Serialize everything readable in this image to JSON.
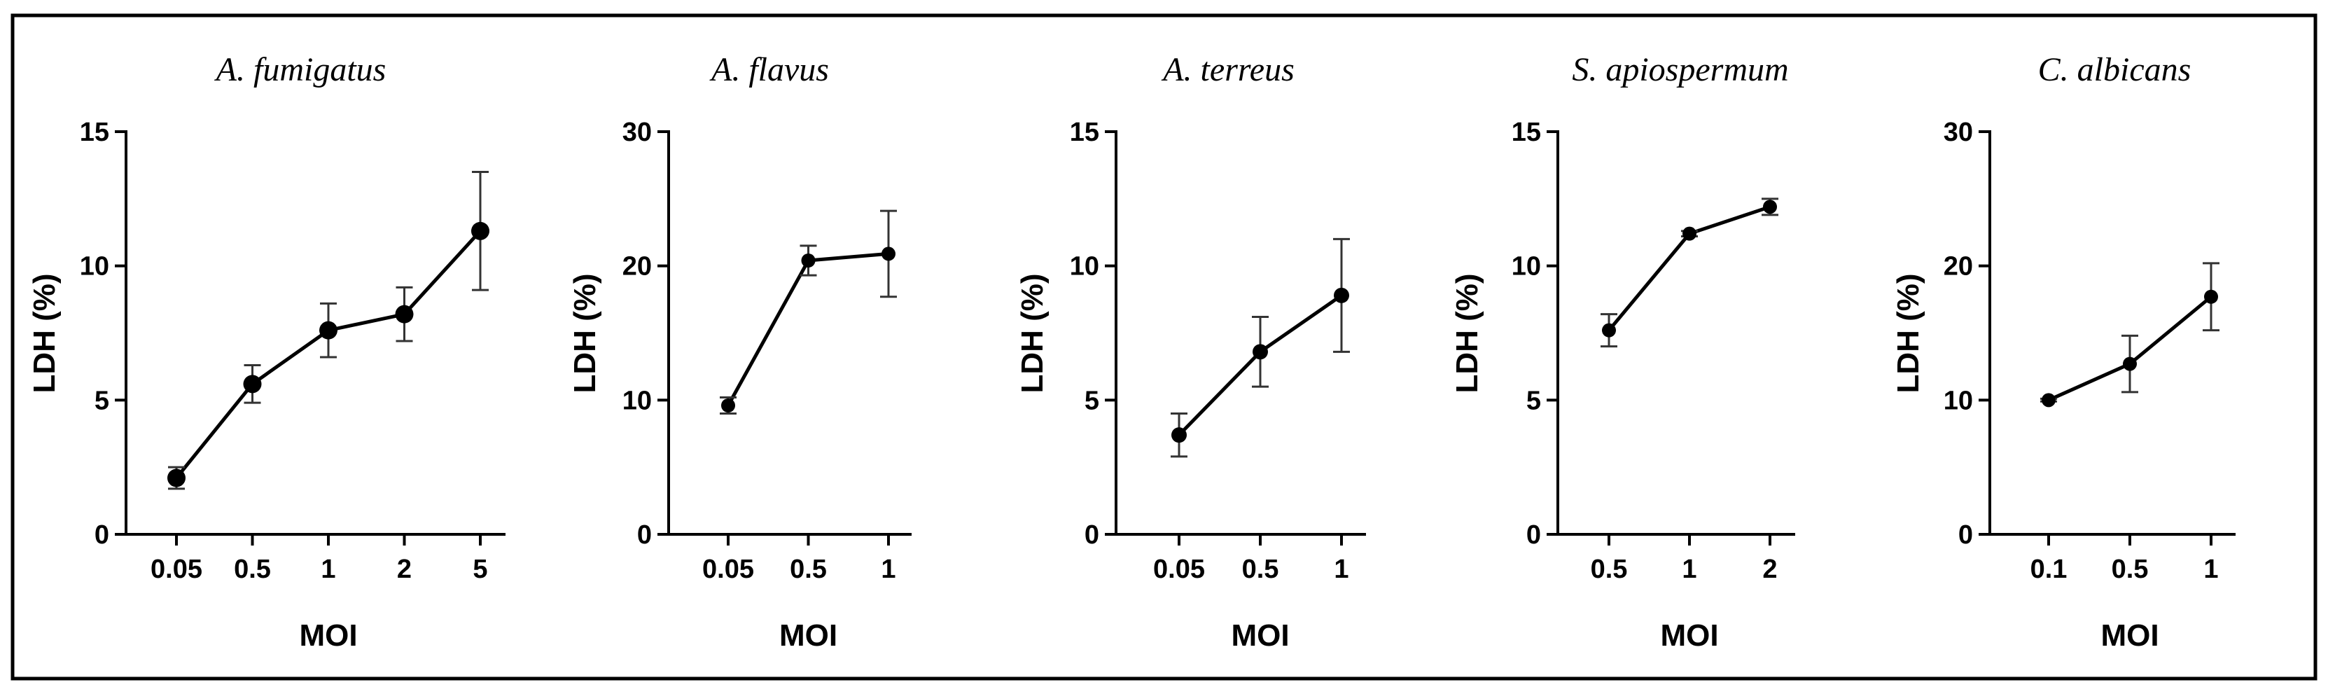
{
  "chart_data": [
    {
      "type": "line",
      "title": "A. fumigatus",
      "xlabel": "MOI",
      "ylabel": "LDH (%)",
      "categories": [
        "0.05",
        "0.5",
        "1",
        "2",
        "5"
      ],
      "values": [
        2.1,
        5.6,
        7.6,
        8.2,
        11.3
      ],
      "errors": [
        0.4,
        0.7,
        1.0,
        1.0,
        2.2
      ],
      "ylim": [
        0,
        15
      ],
      "yticks": [
        0,
        5,
        10,
        15
      ],
      "ytick_labels": [
        "0",
        "5",
        "10",
        "15"
      ]
    },
    {
      "type": "line",
      "title": "A. flavus",
      "xlabel": "MOI",
      "ylabel": "LDH (%)",
      "categories": [
        "0.05",
        "0.5",
        "1"
      ],
      "values": [
        9.6,
        20.4,
        20.9
      ],
      "errors": [
        0.6,
        1.1,
        3.2
      ],
      "ylim": [
        0,
        30
      ],
      "yticks": [
        0,
        10,
        20,
        30
      ],
      "ytick_labels": [
        "0",
        "10",
        "20",
        "30"
      ]
    },
    {
      "type": "line",
      "title": "A. terreus",
      "xlabel": "MOI",
      "ylabel": "LDH (%)",
      "categories": [
        "0.05",
        "0.5",
        "1"
      ],
      "values": [
        3.7,
        6.8,
        8.9
      ],
      "errors": [
        0.8,
        1.3,
        2.1
      ],
      "ylim": [
        0,
        15
      ],
      "yticks": [
        0,
        5,
        10,
        15
      ],
      "ytick_labels": [
        "0",
        "5",
        "10",
        "15"
      ]
    },
    {
      "type": "line",
      "title": "S. apiospermum",
      "xlabel": "MOI",
      "ylabel": "LDH (%)",
      "categories": [
        "0.5",
        "1",
        "2"
      ],
      "values": [
        7.6,
        11.2,
        12.2
      ],
      "errors": [
        0.6,
        0.1,
        0.3
      ],
      "ylim": [
        0,
        15
      ],
      "yticks": [
        0,
        5,
        10,
        15
      ],
      "ytick_labels": [
        "0",
        "5",
        "10",
        "15"
      ]
    },
    {
      "type": "line",
      "title": "C. albicans",
      "xlabel": "MOI",
      "ylabel": "LDH (%)",
      "categories": [
        "0.1",
        "0.5",
        "1"
      ],
      "values": [
        10.0,
        12.7,
        17.7
      ],
      "errors": [
        0.1,
        2.1,
        2.5
      ],
      "ylim": [
        0,
        30
      ],
      "yticks": [
        0,
        10,
        20,
        30
      ],
      "ytick_labels": [
        "0",
        "10",
        "20",
        "30"
      ]
    }
  ]
}
